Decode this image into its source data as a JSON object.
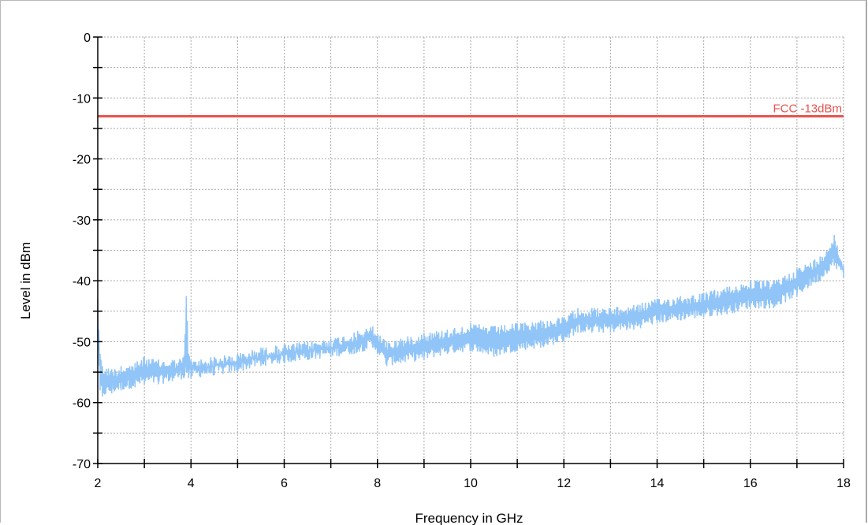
{
  "chart_data": {
    "type": "line",
    "title": "",
    "xlabel": "Frequency in GHz",
    "ylabel": "Level in dBm",
    "xlim": [
      2,
      18
    ],
    "ylim": [
      -70,
      0
    ],
    "x_ticks": [
      2,
      4,
      6,
      8,
      10,
      12,
      14,
      16,
      18
    ],
    "x_tick_labels": [
      "2",
      "4",
      "6",
      "8",
      "10",
      "12",
      "14",
      "16",
      "18"
    ],
    "y_ticks": [
      0,
      -10,
      -20,
      -30,
      -40,
      -50,
      -60,
      -70
    ],
    "y_tick_labels": [
      "0",
      "-10",
      "-20",
      "-30",
      "-40",
      "-50",
      "-60",
      "-70"
    ],
    "grid": true,
    "limit_line": {
      "label": "FCC -13dBm",
      "value": -13,
      "color": "#e85450"
    },
    "series": [
      {
        "color": "#92c5f7",
        "x": [
          2.0,
          2.05,
          2.1,
          2.3,
          2.5,
          2.8,
          3.0,
          3.3,
          3.6,
          3.85,
          3.9,
          3.95,
          4.0,
          4.5,
          5.0,
          5.5,
          6.0,
          6.5,
          7.0,
          7.5,
          7.9,
          8.2,
          8.5,
          9.0,
          9.5,
          10.0,
          10.5,
          11.0,
          11.5,
          12.0,
          12.3,
          12.6,
          13.0,
          13.5,
          14.0,
          14.5,
          15.0,
          15.5,
          16.0,
          16.5,
          17.0,
          17.5,
          17.8,
          18.0
        ],
        "upper": [
          -43,
          -52,
          -54,
          -54.5,
          -54,
          -53.5,
          -52.5,
          -53,
          -53,
          -52.5,
          -42.5,
          -52,
          -53,
          -52.5,
          -52,
          -51,
          -50.5,
          -50,
          -49.5,
          -48.5,
          -47.5,
          -50,
          -49.5,
          -48.5,
          -48,
          -47,
          -47.5,
          -47,
          -46.5,
          -46,
          -44.5,
          -44.5,
          -44.5,
          -44,
          -43,
          -42.5,
          -42,
          -41,
          -40,
          -40,
          -38,
          -36,
          -32.5,
          -37.5
        ],
        "lower": [
          -50,
          -58,
          -59,
          -58.5,
          -58,
          -57.5,
          -57,
          -57,
          -56.5,
          -56,
          -55,
          -56,
          -56,
          -55.5,
          -55,
          -54,
          -53.5,
          -53,
          -52.5,
          -52,
          -51,
          -54,
          -53.5,
          -53,
          -52,
          -51.5,
          -52.5,
          -51.5,
          -51,
          -50,
          -48.5,
          -48.5,
          -48.5,
          -48,
          -47,
          -46.5,
          -46,
          -45.5,
          -44.5,
          -44.5,
          -42.5,
          -40,
          -37.5,
          -39.5
        ]
      }
    ]
  }
}
